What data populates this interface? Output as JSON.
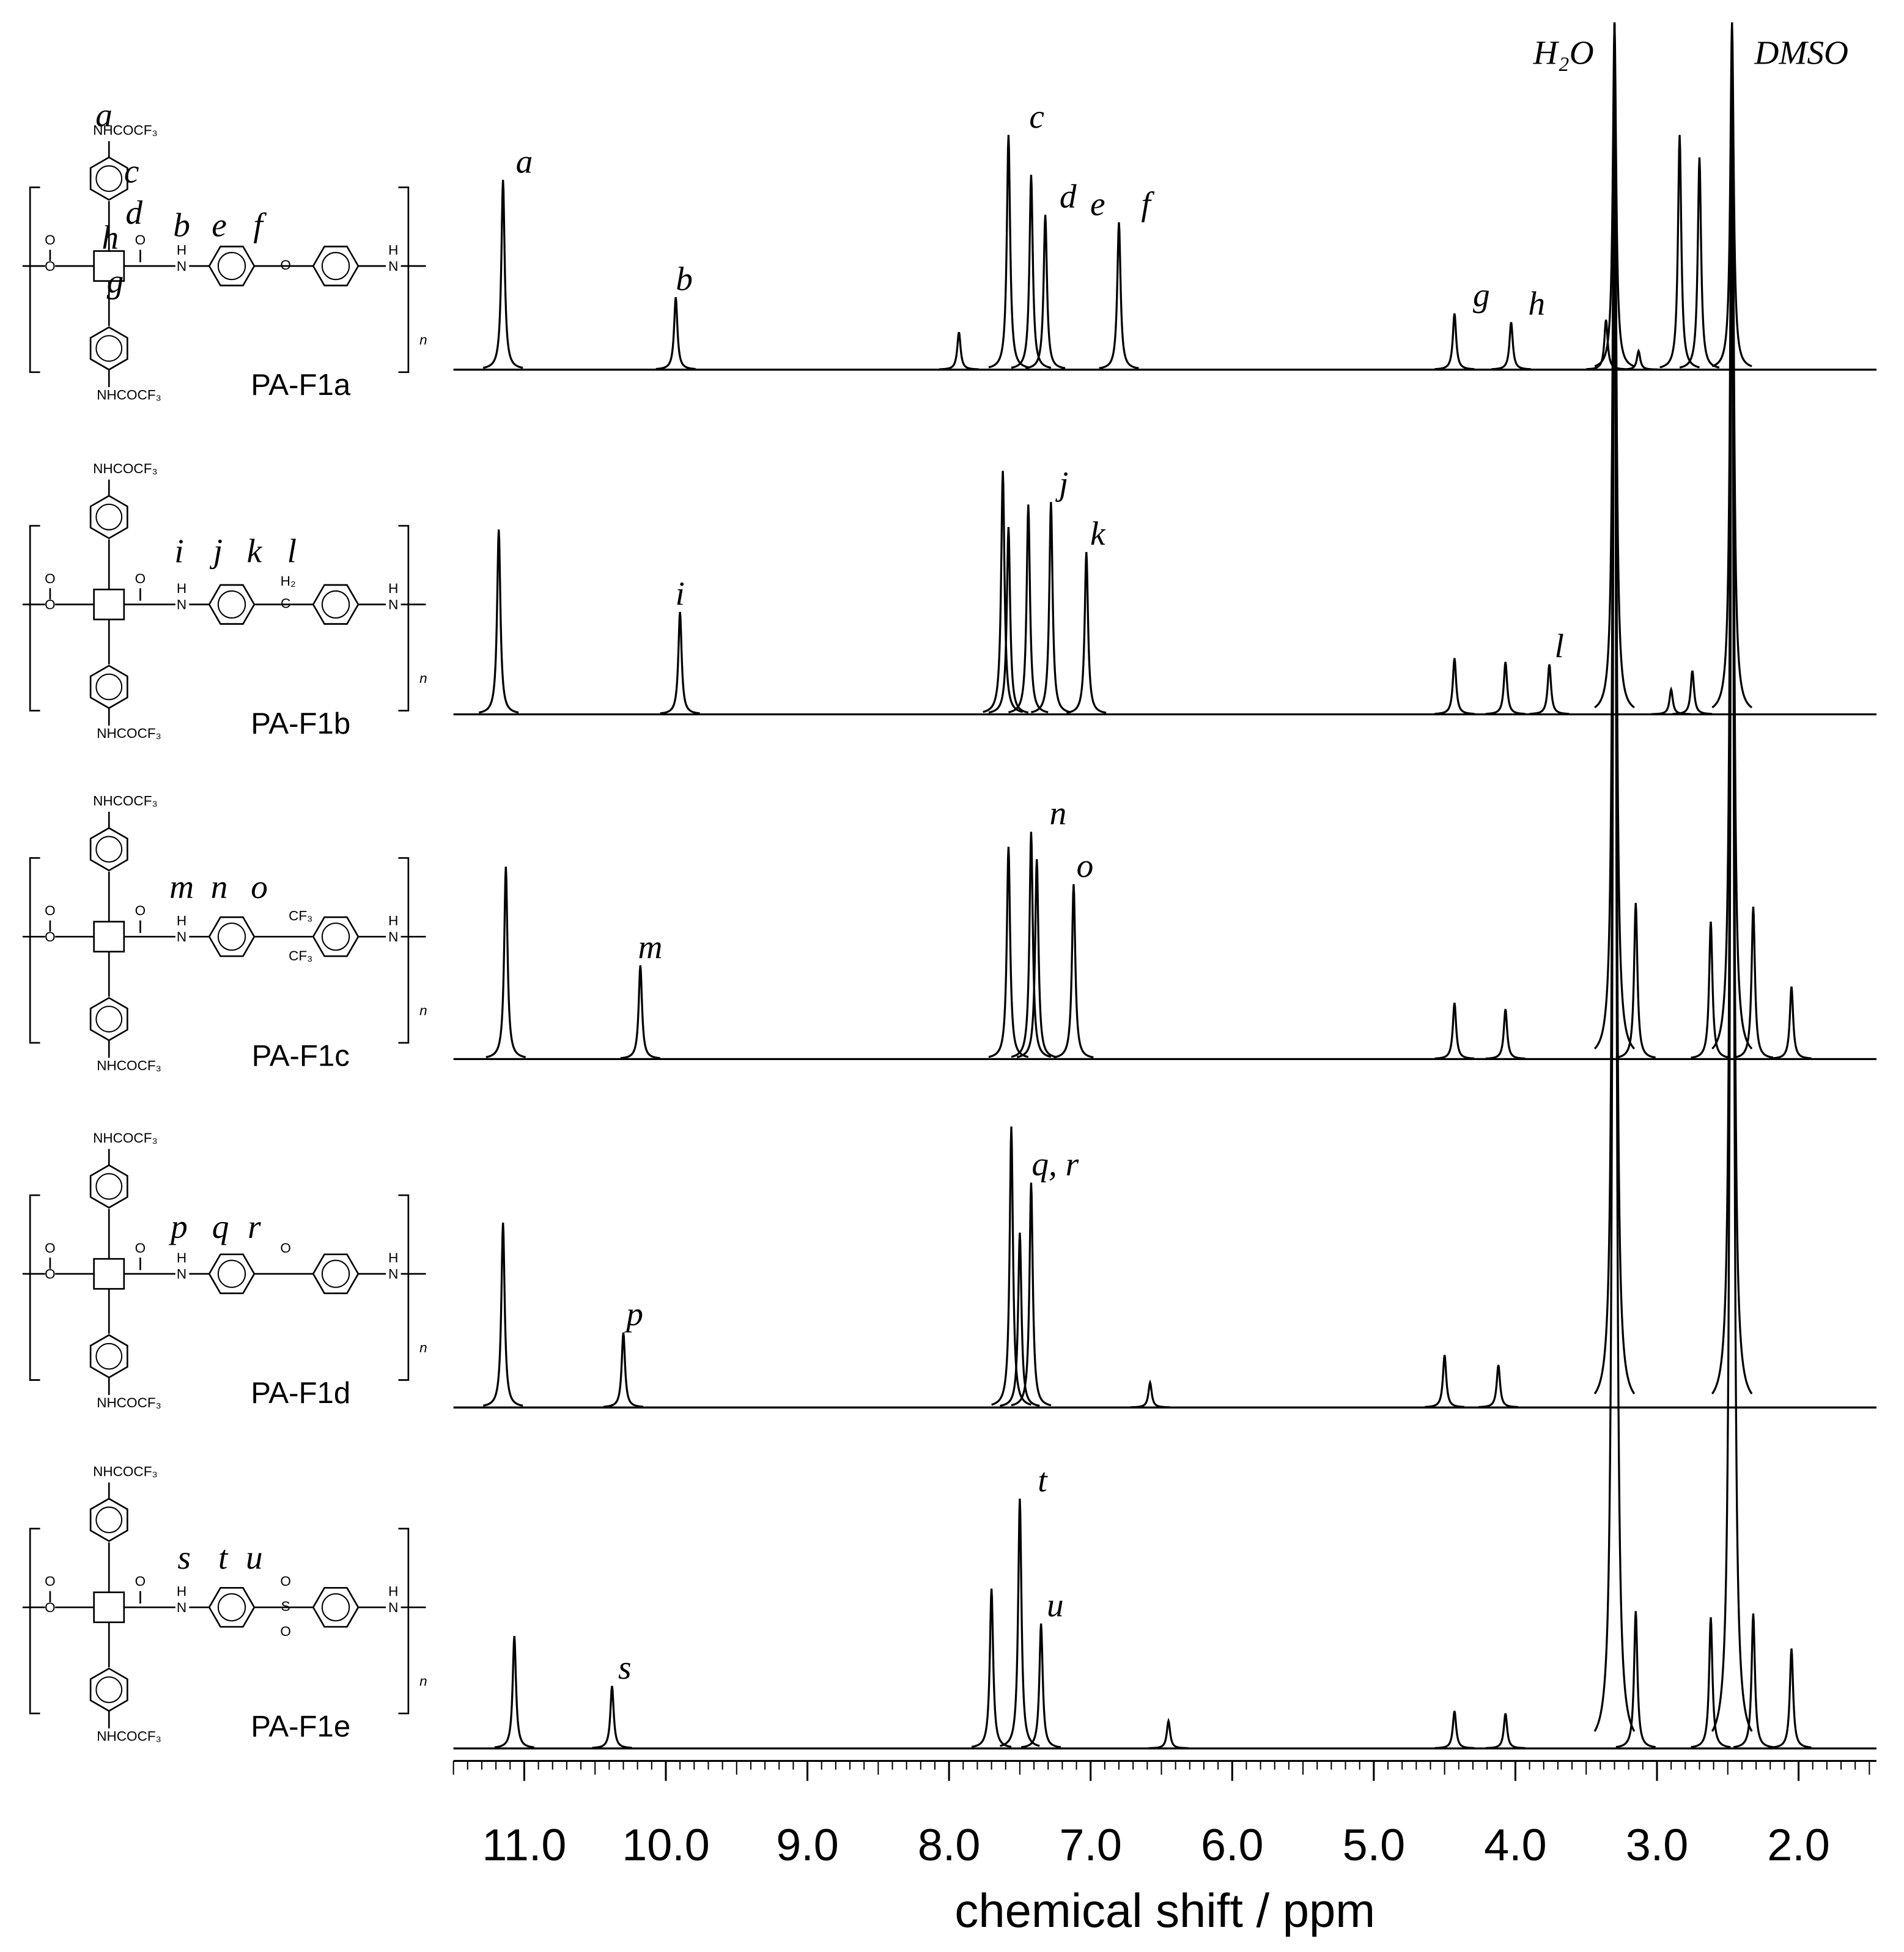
{
  "chart_data": {
    "type": "spectrum",
    "xlabel": "chemical shift / ppm",
    "xlim": [
      11.5,
      1.45
    ],
    "xticks": [
      {
        "value": 11,
        "label": "11.0"
      },
      {
        "value": 10,
        "label": "10.0"
      },
      {
        "value": 9,
        "label": "9.0"
      },
      {
        "value": 8,
        "label": "8.0"
      },
      {
        "value": 7,
        "label": "7.0"
      },
      {
        "value": 6,
        "label": "6.0"
      },
      {
        "value": 5,
        "label": "5.0"
      },
      {
        "value": 4,
        "label": "4.0"
      },
      {
        "value": 3,
        "label": "3.0"
      },
      {
        "value": 2,
        "label": "2.0"
      }
    ],
    "xminor": 0.1,
    "color": "#000000",
    "solvent_labels": [
      {
        "text": "H₂O",
        "x": 3.66
      },
      {
        "text": "DMSO",
        "x": 1.98
      }
    ],
    "spectra": [
      {
        "name": "PA-F1a",
        "x": [
          11.15,
          9.93,
          7.93,
          7.58,
          7.42,
          7.32,
          6.8,
          4.43,
          4.03,
          3.36,
          3.3,
          3.13,
          2.84,
          2.7,
          2.47
        ],
        "values": [
          152,
          58,
          30,
          188,
          156,
          124,
          118,
          45,
          38,
          40,
          278,
          15,
          188,
          170,
          278
        ],
        "peak_labels": [
          {
            "text": "a",
            "x": 11.0
          },
          {
            "text": "b",
            "x": 9.87
          },
          {
            "text": "c",
            "x": 7.38
          },
          {
            "text": "d",
            "x": 7.16
          },
          {
            "text": "e",
            "x": 6.95
          },
          {
            "text": "f",
            "x": 6.61
          },
          {
            "text": "g",
            "x": 4.24
          },
          {
            "text": "h",
            "x": 3.85
          }
        ]
      },
      {
        "name": "PA-F1b",
        "x": [
          11.18,
          9.9,
          7.62,
          7.58,
          7.44,
          7.28,
          7.03,
          4.43,
          4.07,
          3.76,
          3.3,
          2.9,
          2.75,
          2.47
        ],
        "values": [
          148,
          82,
          195,
          150,
          168,
          170,
          130,
          45,
          42,
          40,
          554,
          20,
          35,
          554
        ],
        "peak_labels": [
          {
            "text": "i",
            "x": 9.9
          },
          {
            "text": "j",
            "x": 7.19
          },
          {
            "text": "k",
            "x": 6.95
          },
          {
            "text": "l",
            "x": 3.69
          }
        ]
      },
      {
        "name": "PA-F1c",
        "x": [
          11.13,
          10.18,
          7.58,
          7.42,
          7.38,
          7.12,
          4.43,
          4.07,
          3.3,
          3.15,
          2.62,
          2.47,
          2.32,
          2.05
        ],
        "values": [
          154,
          75,
          170,
          182,
          160,
          140,
          45,
          40,
          830,
          125,
          110,
          830,
          122,
          58
        ],
        "peak_labels": [
          {
            "text": "m",
            "x": 10.11
          },
          {
            "text": "n",
            "x": 7.23
          },
          {
            "text": "o",
            "x": 7.04
          }
        ]
      },
      {
        "name": "PA-F1d",
        "x": [
          11.15,
          10.3,
          7.56,
          7.5,
          7.42,
          6.58,
          4.5,
          4.12,
          3.3,
          2.47
        ],
        "values": [
          148,
          60,
          225,
          140,
          180,
          20,
          42,
          34,
          1109,
          1109
        ],
        "peak_labels": [
          {
            "text": "p",
            "x": 10.22
          },
          {
            "text": "q, r",
            "x": 7.25
          }
        ]
      },
      {
        "name": "PA-F1e",
        "x": [
          11.07,
          10.38,
          7.7,
          7.5,
          7.35,
          6.45,
          4.43,
          4.07,
          3.3,
          3.15,
          2.62,
          2.47,
          2.32,
          2.05
        ],
        "values": [
          90,
          50,
          128,
          200,
          100,
          22,
          30,
          28,
          1382,
          110,
          105,
          1382,
          108,
          80
        ],
        "peak_labels": [
          {
            "text": "s",
            "x": 10.29
          },
          {
            "text": "t",
            "x": 7.34
          },
          {
            "text": "u",
            "x": 7.25
          }
        ]
      }
    ]
  },
  "structure_text": {
    "substituent": "NHCOCF₃",
    "carbonyl": "O",
    "nitrogen": "N",
    "hydrogen": "H",
    "repeat": "n"
  },
  "structures": [
    {
      "linker": [
        "O"
      ],
      "atom_labels": [
        "a",
        "c",
        "d",
        "h",
        "g",
        "b",
        "e",
        "f"
      ]
    },
    {
      "linker": [
        "H₂",
        "C"
      ],
      "atom_labels": [
        "i",
        "j",
        "k",
        "l"
      ]
    },
    {
      "linker": [
        "CF₃",
        "CF₃"
      ],
      "atom_labels": [
        "m",
        "n",
        "o"
      ]
    },
    {
      "linker": [
        "O"
      ],
      "atom_labels": [
        "p",
        "q",
        "r"
      ]
    },
    {
      "linker": [
        "O",
        "S",
        "O"
      ],
      "atom_labels": [
        "s",
        "t",
        "u"
      ]
    }
  ]
}
